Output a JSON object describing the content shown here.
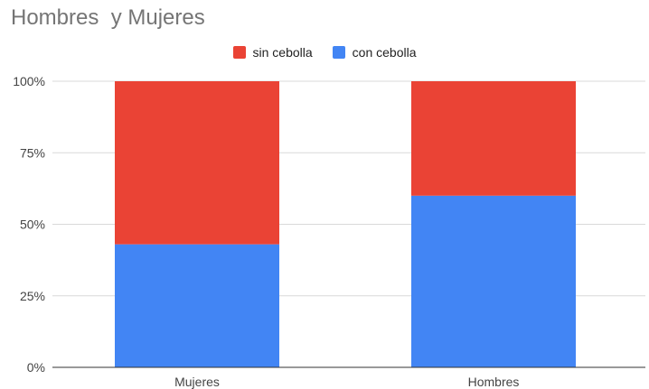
{
  "chart_data": {
    "type": "bar",
    "stacked": true,
    "normalized": true,
    "title": "Hombres  y Mujeres",
    "xlabel": "",
    "ylabel": "",
    "categories": [
      "Mujeres",
      "Hombres"
    ],
    "series": [
      {
        "name": "con cebolla",
        "color": "#4285f4",
        "values": [
          43,
          60
        ]
      },
      {
        "name": "sin cebolla",
        "color": "#ea4335",
        "values": [
          57,
          40
        ]
      }
    ],
    "legend_order": [
      "sin cebolla",
      "con cebolla"
    ],
    "yticks": [
      "0%",
      "25%",
      "50%",
      "75%",
      "100%"
    ],
    "ylim": [
      0,
      100
    ],
    "legend_position": "top",
    "grid": true
  }
}
